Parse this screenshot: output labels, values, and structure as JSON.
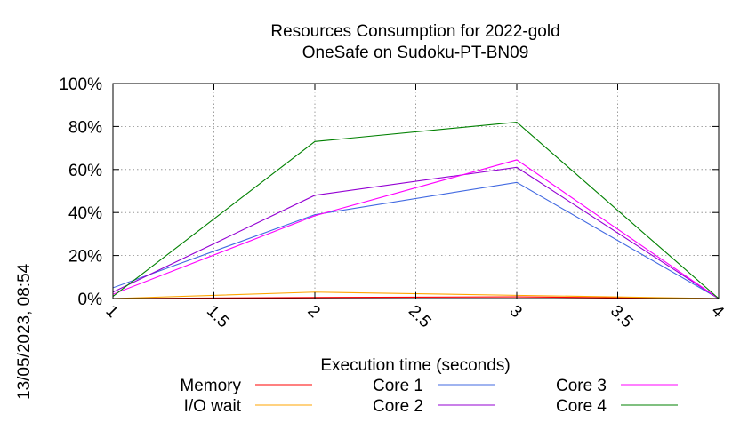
{
  "chart_data": {
    "type": "line",
    "title": [
      "Resources Consumption for 2022-gold",
      "OneSafe on Sudoku-PT-BN09"
    ],
    "xlabel": "Execution time (seconds)",
    "ylabel": "",
    "xlim": [
      1,
      4
    ],
    "ylim": [
      0,
      100
    ],
    "xticks": [
      1,
      1.5,
      2,
      2.5,
      3,
      3.5,
      4
    ],
    "xtick_labels": [
      "1",
      "1.5",
      "2",
      "2.5",
      "3",
      "3.5",
      "4"
    ],
    "yticks": [
      0,
      20,
      40,
      60,
      80,
      100
    ],
    "ytick_labels": [
      "0%",
      "20%",
      "40%",
      "60%",
      "80%",
      "100%"
    ],
    "grid": true,
    "legend_position": "bottom",
    "timestamp": "13/05/2023, 08:54",
    "series": [
      {
        "name": "Memory",
        "color": "#ff0000",
        "x": [
          1,
          2,
          3,
          4
        ],
        "y": [
          0,
          0.5,
          0.8,
          0
        ]
      },
      {
        "name": "I/O wait",
        "color": "#ffa500",
        "x": [
          1,
          2,
          3,
          4
        ],
        "y": [
          0,
          3,
          1.5,
          0
        ]
      },
      {
        "name": "Core 1",
        "color": "#4169e1",
        "x": [
          1,
          2,
          3,
          4
        ],
        "y": [
          5,
          39,
          54,
          0
        ]
      },
      {
        "name": "Core 2",
        "color": "#9400d3",
        "x": [
          1,
          2,
          3,
          4
        ],
        "y": [
          3,
          48,
          61,
          0
        ]
      },
      {
        "name": "Core 3",
        "color": "#ff00ff",
        "x": [
          1,
          2,
          3,
          4
        ],
        "y": [
          2,
          38.5,
          64.5,
          0
        ]
      },
      {
        "name": "Core 4",
        "color": "#008000",
        "x": [
          1,
          2,
          3,
          4
        ],
        "y": [
          1,
          73,
          82,
          0
        ]
      }
    ]
  }
}
